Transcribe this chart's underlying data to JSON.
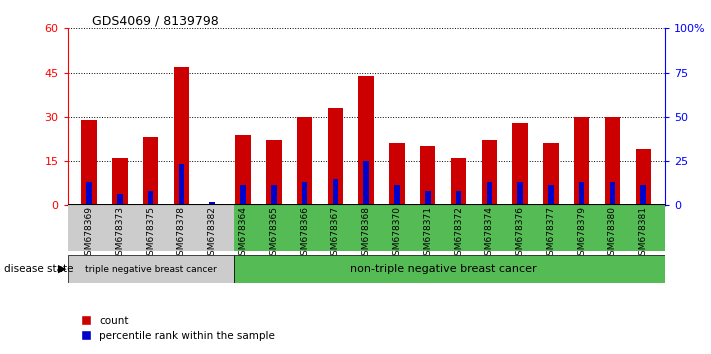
{
  "title": "GDS4069 / 8139798",
  "samples": [
    "GSM678369",
    "GSM678373",
    "GSM678375",
    "GSM678378",
    "GSM678382",
    "GSM678364",
    "GSM678365",
    "GSM678366",
    "GSM678367",
    "GSM678368",
    "GSM678370",
    "GSM678371",
    "GSM678372",
    "GSM678374",
    "GSM678376",
    "GSM678377",
    "GSM678379",
    "GSM678380",
    "GSM678381"
  ],
  "red_values": [
    29,
    16,
    23,
    47,
    0,
    24,
    22,
    30,
    33,
    44,
    21,
    20,
    16,
    22,
    28,
    21,
    30,
    30,
    19
  ],
  "blue_values": [
    8,
    4,
    5,
    14,
    1,
    7,
    7,
    8,
    9,
    15,
    7,
    5,
    5,
    8,
    8,
    7,
    8,
    8,
    7
  ],
  "group1_count": 5,
  "group2_count": 14,
  "group1_label": "triple negative breast cancer",
  "group2_label": "non-triple negative breast cancer",
  "disease_state_label": "disease state",
  "ylim_left": [
    0,
    60
  ],
  "ylim_right": [
    0,
    100
  ],
  "yticks_left": [
    0,
    15,
    30,
    45,
    60
  ],
  "ytick_labels_left": [
    "0",
    "15",
    "30",
    "45",
    "60"
  ],
  "yticks_right": [
    0,
    25,
    50,
    75,
    100
  ],
  "ytick_labels_right": [
    "0",
    "25",
    "50",
    "75",
    "100%"
  ],
  "bar_color": "#cc0000",
  "blue_color": "#0000cc",
  "group1_bg": "#cccccc",
  "group2_bg": "#55bb55",
  "bar_width": 0.5,
  "blue_bar_width": 0.18,
  "legend_count_label": "count",
  "legend_percentile_label": "percentile rank within the sample"
}
